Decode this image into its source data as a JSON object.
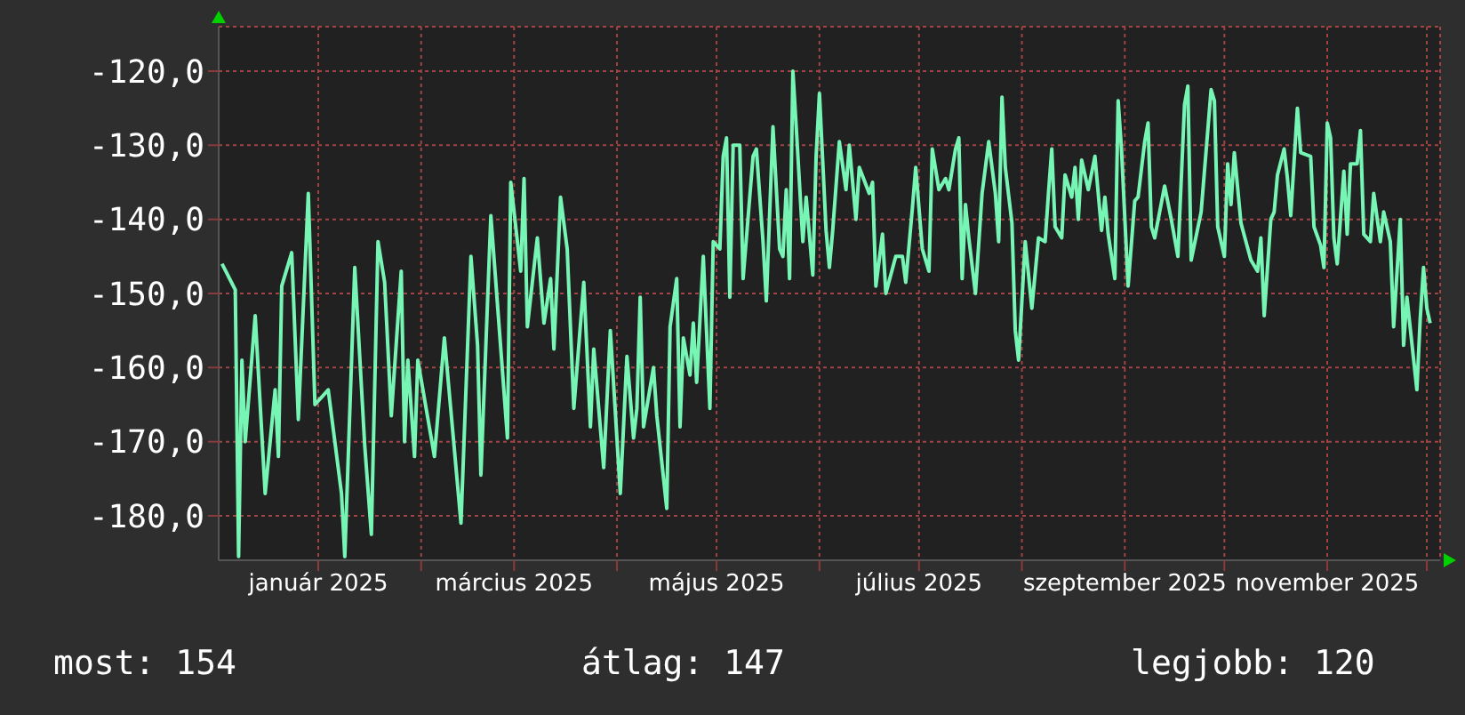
{
  "chart_data": {
    "type": "line",
    "annotations": [
      "most: 154",
      "átlag: 147",
      "legjobb: 120"
    ],
    "xlim": [
      "2024-12-02",
      "2025-12-05"
    ],
    "xticks": [
      {
        "value": "2025-01-01",
        "label": "január 2025"
      },
      {
        "value": "2025-02-01",
        "label": null
      },
      {
        "value": "2025-03-01",
        "label": "március 2025"
      },
      {
        "value": "2025-04-01",
        "label": null
      },
      {
        "value": "2025-05-01",
        "label": "május 2025"
      },
      {
        "value": "2025-06-01",
        "label": null
      },
      {
        "value": "2025-07-01",
        "label": "július 2025"
      },
      {
        "value": "2025-08-01",
        "label": null
      },
      {
        "value": "2025-09-01",
        "label": "szeptember 2025"
      },
      {
        "value": "2025-10-01",
        "label": null
      },
      {
        "value": "2025-11-01",
        "label": "november 2025"
      },
      {
        "value": "2025-12-01",
        "label": null
      }
    ],
    "ylim": [
      -186,
      -114
    ],
    "yticks": [
      {
        "value": -180,
        "label": "-180,0"
      },
      {
        "value": -170,
        "label": "-170,0"
      },
      {
        "value": -160,
        "label": "-160,0"
      },
      {
        "value": -150,
        "label": "-150,0"
      },
      {
        "value": -140,
        "label": "-140,0"
      },
      {
        "value": -130,
        "label": "-130,0"
      },
      {
        "value": -120,
        "label": "-120,0"
      }
    ],
    "grid": true,
    "x": [
      "2024-12-03",
      "2024-12-07",
      "2024-12-08",
      "2024-12-09",
      "2024-12-10",
      "2024-12-13",
      "2024-12-16",
      "2024-12-19",
      "2024-12-20",
      "2024-12-21",
      "2024-12-24",
      "2024-12-26",
      "2024-12-29",
      "2024-12-31",
      "2025-01-04",
      "2025-01-08",
      "2025-01-09",
      "2025-01-12",
      "2025-01-15",
      "2025-01-17",
      "2025-01-19",
      "2025-01-21",
      "2025-01-23",
      "2025-01-26",
      "2025-01-27",
      "2025-01-28",
      "2025-01-30",
      "2025-01-31",
      "2025-02-05",
      "2025-02-08",
      "2025-02-13",
      "2025-02-16",
      "2025-02-18",
      "2025-02-19",
      "2025-02-22",
      "2025-02-27",
      "2025-02-28",
      "2025-03-03",
      "2025-03-04",
      "2025-03-05",
      "2025-03-08",
      "2025-03-10",
      "2025-03-12",
      "2025-03-13",
      "2025-03-15",
      "2025-03-17",
      "2025-03-19",
      "2025-03-22",
      "2025-03-24",
      "2025-03-25",
      "2025-03-28",
      "2025-03-30",
      "2025-04-02",
      "2025-04-04",
      "2025-04-06",
      "2025-04-07",
      "2025-04-08",
      "2025-04-09",
      "2025-04-12",
      "2025-04-13",
      "2025-04-16",
      "2025-04-17",
      "2025-04-19",
      "2025-04-20",
      "2025-04-21",
      "2025-04-23",
      "2025-04-24",
      "2025-04-25",
      "2025-04-27",
      "2025-04-29",
      "2025-04-30",
      "2025-05-02",
      "2025-05-03",
      "2025-05-04",
      "2025-05-05",
      "2025-05-06",
      "2025-05-08",
      "2025-05-09",
      "2025-05-12",
      "2025-05-13",
      "2025-05-15",
      "2025-05-16",
      "2025-05-18",
      "2025-05-20",
      "2025-05-21",
      "2025-05-22",
      "2025-05-23",
      "2025-05-24",
      "2025-05-25",
      "2025-05-27",
      "2025-05-28",
      "2025-05-30",
      "2025-05-31",
      "2025-06-01",
      "2025-06-03",
      "2025-06-04",
      "2025-06-05",
      "2025-06-07",
      "2025-06-09",
      "2025-06-10",
      "2025-06-12",
      "2025-06-13",
      "2025-06-16",
      "2025-06-17",
      "2025-06-18",
      "2025-06-20",
      "2025-06-21",
      "2025-06-24",
      "2025-06-26",
      "2025-06-27",
      "2025-06-29",
      "2025-06-30",
      "2025-07-02",
      "2025-07-04",
      "2025-07-05",
      "2025-07-07",
      "2025-07-09",
      "2025-07-10",
      "2025-07-12",
      "2025-07-13",
      "2025-07-14",
      "2025-07-15",
      "2025-07-16",
      "2025-07-18",
      "2025-07-20",
      "2025-07-22",
      "2025-07-24",
      "2025-07-25",
      "2025-07-26",
      "2025-07-27",
      "2025-07-29",
      "2025-07-30",
      "2025-07-31",
      "2025-08-02",
      "2025-08-03",
      "2025-08-04",
      "2025-08-06",
      "2025-08-08",
      "2025-08-09",
      "2025-08-10",
      "2025-08-11",
      "2025-08-13",
      "2025-08-14",
      "2025-08-16",
      "2025-08-17",
      "2025-08-18",
      "2025-08-19",
      "2025-08-21",
      "2025-08-23",
      "2025-08-25",
      "2025-08-26",
      "2025-08-27",
      "2025-08-29",
      "2025-08-30",
      "2025-08-31",
      "2025-09-02",
      "2025-09-04",
      "2025-09-05",
      "2025-09-07",
      "2025-09-08",
      "2025-09-09",
      "2025-09-10",
      "2025-09-13",
      "2025-09-15",
      "2025-09-17",
      "2025-09-19",
      "2025-09-20",
      "2025-09-21",
      "2025-09-24",
      "2025-09-25",
      "2025-09-27",
      "2025-09-28",
      "2025-09-29",
      "2025-10-01",
      "2025-10-02",
      "2025-10-03",
      "2025-10-04",
      "2025-10-06",
      "2025-10-09",
      "2025-10-11",
      "2025-10-12",
      "2025-10-13",
      "2025-10-15",
      "2025-10-16",
      "2025-10-17",
      "2025-10-19",
      "2025-10-20",
      "2025-10-21",
      "2025-10-23",
      "2025-10-24",
      "2025-10-27",
      "2025-10-28",
      "2025-10-30",
      "2025-10-31",
      "2025-11-01",
      "2025-11-02",
      "2025-11-03",
      "2025-11-04",
      "2025-11-06",
      "2025-11-07",
      "2025-11-08",
      "2025-11-10",
      "2025-11-11",
      "2025-11-12",
      "2025-11-14",
      "2025-11-15",
      "2025-11-17",
      "2025-11-18",
      "2025-11-20",
      "2025-11-21",
      "2025-11-23",
      "2025-11-24",
      "2025-11-25",
      "2025-11-28",
      "2025-11-29",
      "2025-11-30",
      "2025-12-01",
      "2025-12-02"
    ],
    "series": [
      {
        "color": "#77f5b5",
        "values": [
          -146,
          -149.5,
          -185.5,
          -159,
          -170,
          -153,
          -177,
          -163,
          -172,
          -149,
          -144.5,
          -167,
          -136.5,
          -165,
          -163,
          -177,
          -185.5,
          -146.5,
          -170.5,
          -182.5,
          -143,
          -148.5,
          -166.5,
          -147,
          -170,
          -159,
          -172,
          -159,
          -172,
          -156,
          -181,
          -145,
          -157,
          -174.5,
          -139.5,
          -169.5,
          -135,
          -147,
          -134.5,
          -154.5,
          -142.5,
          -154,
          -148,
          -157.5,
          -137,
          -144,
          -165.5,
          -148.5,
          -168,
          -157.5,
          -173.5,
          -155,
          -177,
          -158.5,
          -169.5,
          -165.5,
          -150.5,
          -168,
          -160,
          -166.5,
          -179,
          -154.5,
          -148,
          -168,
          -156,
          -161,
          -154,
          -162,
          -145,
          -165.5,
          -143,
          -144,
          -131.5,
          -129,
          -150.5,
          -130,
          -130,
          -148,
          -131.5,
          -130.5,
          -143,
          -151,
          -127.5,
          -144,
          -145,
          -136,
          -148,
          -120,
          -127.5,
          -143,
          -137,
          -147.5,
          -131.5,
          -123,
          -141.5,
          -146.5,
          -141.5,
          -129.5,
          -136,
          -130,
          -140,
          -133,
          -136.5,
          -135,
          -149,
          -142,
          -150,
          -145,
          -145,
          -148.5,
          -138.5,
          -133,
          -144,
          -147,
          -130.5,
          -136,
          -134.5,
          -136,
          -130.5,
          -129,
          -148,
          -138,
          -142.5,
          -150,
          -136.5,
          -129.5,
          -136.5,
          -143,
          -123.5,
          -133,
          -140.5,
          -155,
          -159,
          -143,
          -147.5,
          -152,
          -142.5,
          -143,
          -136.5,
          -130.5,
          -141,
          -142.5,
          -134,
          -137,
          -133,
          -140,
          -132,
          -136,
          -131.5,
          -141.5,
          -137,
          -142,
          -148,
          -124,
          -130.5,
          -149,
          -137.5,
          -137,
          -129.5,
          -127,
          -141,
          -142.5,
          -135.5,
          -140,
          -145,
          -124.5,
          -122,
          -145.5,
          -139,
          -133.5,
          -122.5,
          -124,
          -141,
          -145,
          -132.5,
          -138,
          -131,
          -140.5,
          -145.5,
          -147,
          -142.5,
          -153,
          -140,
          -139,
          -134,
          -130.5,
          -134.5,
          -139.5,
          -125,
          -131,
          -131.5,
          -141,
          -143.5,
          -146.5,
          -127,
          -129,
          -142.5,
          -146,
          -133.5,
          -142,
          -132.5,
          -132.5,
          -128,
          -142,
          -143,
          -136.5,
          -143,
          -139,
          -143,
          -154.5,
          -140,
          -157,
          -150.5,
          -163,
          -153.5,
          -146.5,
          -152,
          -154
        ]
      }
    ]
  }
}
